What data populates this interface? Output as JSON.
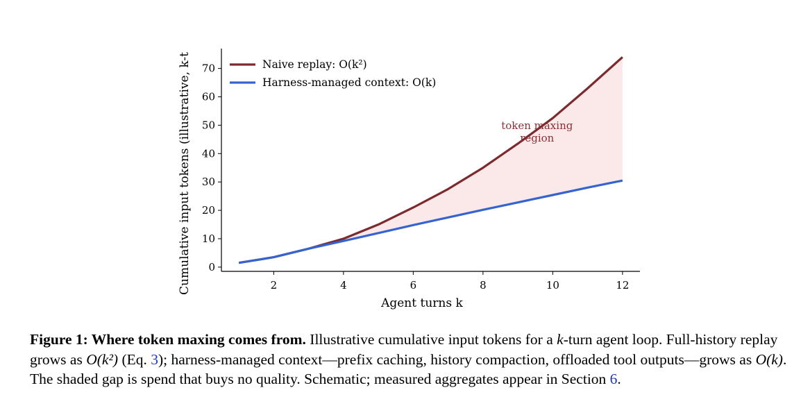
{
  "chart_data": {
    "type": "line",
    "xlabel": "Agent turns k",
    "ylabel": "Cumulative input tokens (illustrative, k-t",
    "xlim": [
      0.5,
      12.5
    ],
    "ylim": [
      -1.5,
      77
    ],
    "xticks": [
      2,
      4,
      6,
      8,
      10,
      12
    ],
    "yticks": [
      0,
      10,
      20,
      30,
      40,
      50,
      60,
      70
    ],
    "x": [
      1,
      2,
      3,
      4,
      5,
      6,
      7,
      8,
      9,
      10,
      11,
      12
    ],
    "series": [
      {
        "name": "Naive replay: O(k²)",
        "color": "#7b2a2e",
        "values": [
          1.5,
          3.5,
          6.5,
          10,
          15,
          21,
          27.5,
          35,
          43.5,
          52.5,
          63,
          74
        ]
      },
      {
        "name": "Harness-managed context: O(k)",
        "color": "#3563d0",
        "values": [
          1.5,
          3.5,
          6.5,
          9.2,
          12,
          14.8,
          17.5,
          20.2,
          22.8,
          25.4,
          28,
          30.5
        ]
      }
    ],
    "fill_between": {
      "from": "Naive replay: O(k²)",
      "to": "Harness-managed context: O(k)",
      "color": "#fbe8e8"
    },
    "annotation": {
      "line1": "token maxing",
      "line2": "region",
      "color": "#8b2f35"
    },
    "legend": "top-left",
    "grid": false
  },
  "caption": {
    "figure_label": "Figure 1: Where token maxing comes from.",
    "p1": " Illustrative cumulative input tokens for a ",
    "k1": "k",
    "p2": "-turn agent loop. Full-history replay grows as ",
    "math1": "O(k²)",
    "p3": " (Eq. ",
    "eq_ref": "3",
    "p4": "); harness-managed context—prefix caching, history compaction, offloaded tool outputs—grows as ",
    "math2": "O(k)",
    "p5": ". The shaded gap is spend that buys no quality. Schematic; measured aggregates appear in Section ",
    "section_ref": "6",
    "p6": "."
  }
}
